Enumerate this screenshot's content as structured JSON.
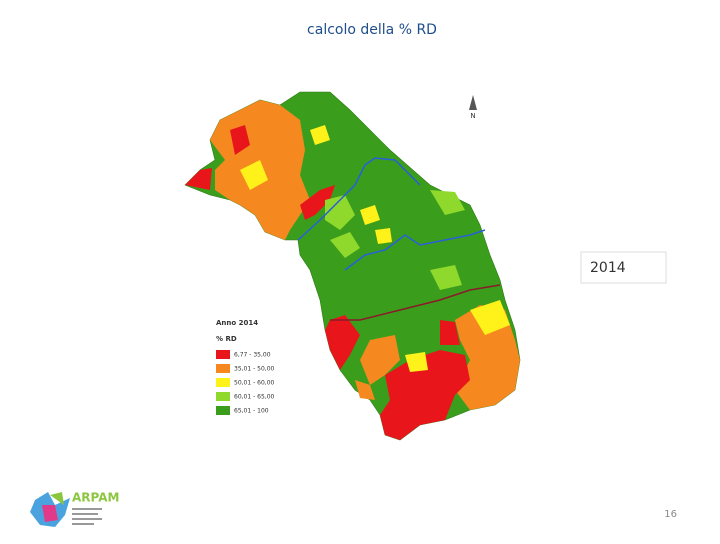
{
  "title": "calcolo della % RD",
  "year_box": "2014",
  "page_number": "16",
  "map": {
    "north_label": "N",
    "legend": {
      "title": "Anno 2014",
      "subtitle": "% RD",
      "items": [
        {
          "label": "6,77 - 35,00",
          "color": "#e8161b"
        },
        {
          "label": "35,01 - 50,00",
          "color": "#f5891f"
        },
        {
          "label": "50,01 - 60,00",
          "color": "#fff21a"
        },
        {
          "label": "60,01 - 65,00",
          "color": "#8fd82c"
        },
        {
          "label": "65,01 - 100",
          "color": "#3a9e1c"
        }
      ]
    }
  },
  "logo": {
    "name": "ARPAM"
  }
}
